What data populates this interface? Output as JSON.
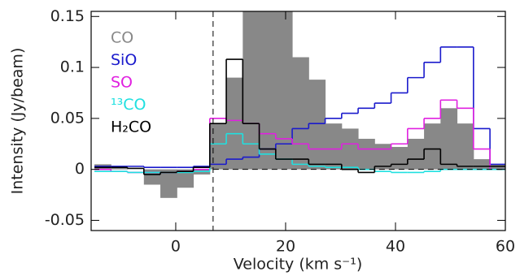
{
  "chart_data": {
    "type": "step",
    "x_label": "Velocity (km s⁻¹)",
    "y_label": "Intensity (Jy/beam)",
    "x": [
      -13.3,
      -10.3,
      -7.3,
      -4.3,
      -1.3,
      1.7,
      4.7,
      7.7,
      10.7,
      13.7,
      16.7,
      19.7,
      22.7,
      25.7,
      28.7,
      31.7,
      34.7,
      37.7,
      40.7,
      43.7,
      46.7,
      49.7,
      52.7,
      55.7,
      58.7
    ],
    "series": [
      {
        "name": "CO",
        "color": "#888888",
        "filled": true,
        "values": [
          0.005,
          0.003,
          0,
          -0.015,
          -0.028,
          -0.018,
          -0.005,
          0.045,
          0.09,
          0.2,
          0.2,
          0.155,
          0.11,
          0.088,
          0.045,
          0.04,
          0.03,
          0.025,
          0.022,
          0.03,
          0.045,
          0.06,
          0.045,
          0.01,
          0.005
        ]
      },
      {
        "name": "SiO",
        "color": "#1a1acc",
        "filled": false,
        "values": [
          0.003,
          0.003,
          0.003,
          0.002,
          0.002,
          0.002,
          0.003,
          0.005,
          0.01,
          0.012,
          0.02,
          0.025,
          0.04,
          0.045,
          0.05,
          0.055,
          0.06,
          0.065,
          0.075,
          0.09,
          0.105,
          0.12,
          0.12,
          0.04,
          0.005
        ]
      },
      {
        "name": "SO",
        "color": "#e020e0",
        "filled": false,
        "values": [
          0,
          -0.002,
          -0.003,
          -0.003,
          -0.003,
          -0.002,
          0,
          0.05,
          0.048,
          0.045,
          0.035,
          0.03,
          0.025,
          0.02,
          0.02,
          0.025,
          0.02,
          0.02,
          0.025,
          0.04,
          0.05,
          0.068,
          0.06,
          0.02,
          0
        ]
      },
      {
        "name": "¹³CO",
        "color": "#20e0e0",
        "filled": false,
        "values": [
          -0.002,
          -0.002,
          -0.003,
          -0.003,
          -0.003,
          -0.003,
          -0.002,
          0.025,
          0.035,
          0.025,
          0.015,
          0.01,
          0.005,
          0.003,
          0.002,
          0.002,
          0,
          -0.002,
          -0.003,
          -0.003,
          -0.002,
          0,
          0,
          0,
          0
        ]
      },
      {
        "name": "H₂CO",
        "color": "#000000",
        "filled": false,
        "values": [
          0.002,
          0.002,
          0.001,
          -0.005,
          -0.003,
          -0.002,
          0.002,
          0.045,
          0.108,
          0.045,
          0.02,
          0.01,
          0.01,
          0.005,
          0.005,
          0,
          -0.003,
          0.003,
          0.005,
          0.01,
          0.02,
          0.005,
          0.003,
          0.003,
          0.003
        ]
      }
    ],
    "reference_lines": {
      "x": 6.8,
      "y": 0
    },
    "xlim": [
      -15.4,
      60
    ],
    "ylim": [
      -0.06,
      0.155
    ],
    "xticks": [
      0,
      20,
      40,
      60
    ],
    "yticks": [
      -0.05,
      0,
      0.05,
      0.1,
      0.15
    ],
    "legend": "upper left"
  }
}
